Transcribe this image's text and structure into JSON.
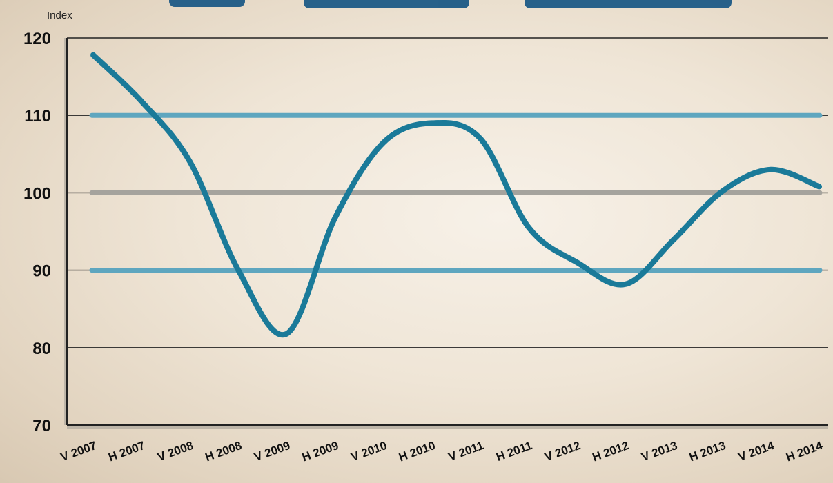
{
  "chart_data": {
    "type": "line",
    "ylabel": "Index",
    "ylim": [
      70,
      120
    ],
    "yticks": [
      120,
      110,
      100,
      90,
      80,
      70
    ],
    "categories": [
      "V 2007",
      "H 2007",
      "V 2008",
      "H 2008",
      "V 2009",
      "H 2009",
      "V 2010",
      "H 2010",
      "V 2011",
      "H 2011",
      "V 2012",
      "H 2012",
      "V 2013",
      "H 2013",
      "V 2014",
      "H 2014"
    ],
    "series": [
      {
        "values": [
          117.8,
          111.8,
          104.0,
          90.0,
          81.8,
          96.8,
          106.5,
          109.0,
          107.0,
          95.5,
          91.0,
          88.2,
          94.0,
          100.2,
          103.0,
          100.8
        ]
      }
    ],
    "reference_lines": [
      110,
      100,
      90
    ],
    "grid": true,
    "colors": {
      "series": "#1a7a99",
      "band_lines": "#5ea6bf",
      "center_line": "#a5a39d",
      "gridline": "#222222"
    }
  }
}
